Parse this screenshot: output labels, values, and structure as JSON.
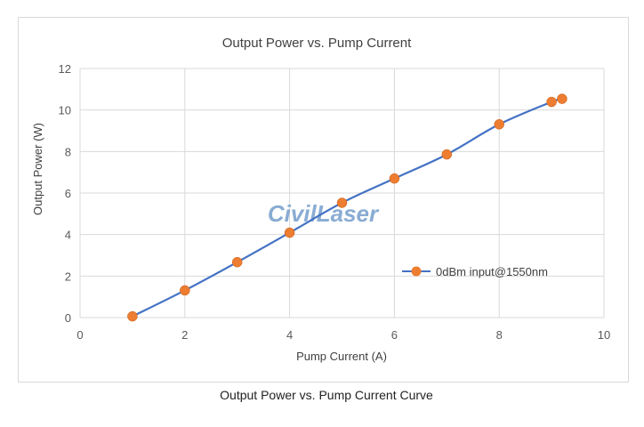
{
  "caption": "Output Power vs. Pump Current Curve",
  "watermark": "CivilLaser",
  "colors": {
    "line": "#4472c4",
    "marker": "#ed7d31",
    "grid": "#d9d9d9",
    "text": "#595959",
    "watermark": "#7da4cf"
  },
  "chart_data": {
    "type": "scatter",
    "title": "Output Power vs. Pump Current",
    "xlabel": "Pump Current (A)",
    "ylabel": "Output Power (W)",
    "xlim": [
      0,
      10
    ],
    "ylim": [
      0,
      12
    ],
    "xticks": [
      0,
      2,
      4,
      6,
      8,
      10
    ],
    "yticks": [
      0,
      2,
      4,
      6,
      8,
      10,
      12
    ],
    "grid": true,
    "legend_position": "right",
    "series": [
      {
        "name": "0dBm input@1550nm",
        "x": [
          1,
          2,
          3,
          4,
          5,
          6,
          7,
          8,
          9,
          9.2
        ],
        "y": [
          0.06,
          1.31,
          2.67,
          4.09,
          5.53,
          6.7,
          7.86,
          9.31,
          10.39,
          10.54
        ]
      }
    ]
  }
}
